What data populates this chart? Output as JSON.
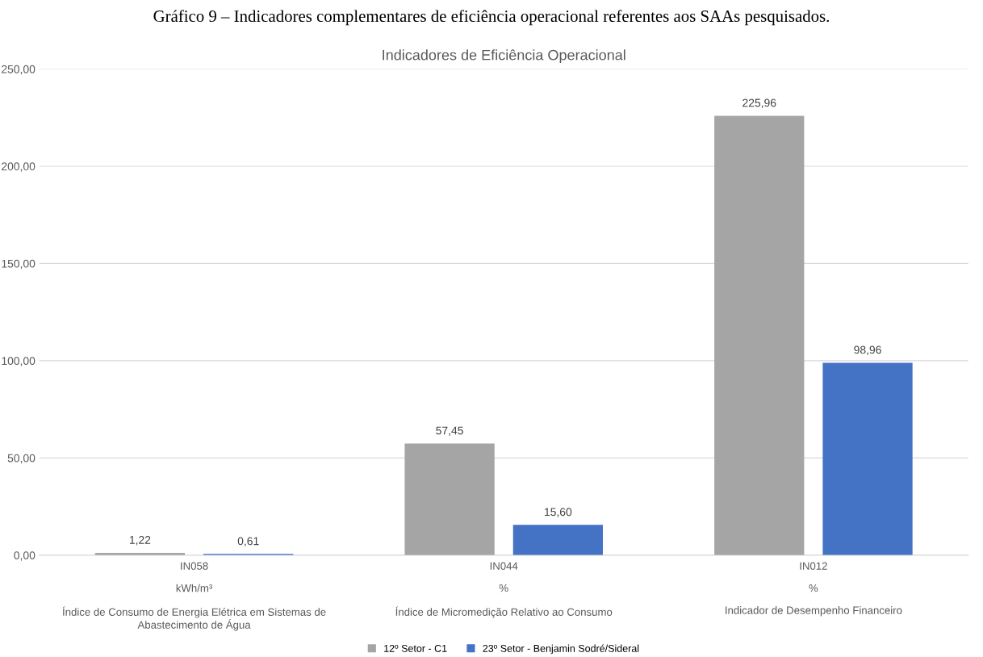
{
  "chart_data": {
    "type": "bar",
    "title": "Indicadores de Eficiência Operacional",
    "annotations": [
      "Gráfico 9 – Indicadores complementares de eficiência operacional referentes aos SAAs pesquisados."
    ],
    "categories": [
      "IN058\n\nkWh/m³\n\nÍndice de Consumo de Energia Elétrica em Sistemas de\nAbastecimento de Água",
      "IN044\n\n%\n\nÍndice de Micromedição Relativo ao Consumo",
      "IN012\n\n%\n\nIndicador de Desempenho Financeiro"
    ],
    "series": [
      {
        "name": "12º Setor - C1",
        "color": "#a5a5a5",
        "values": [
          1.22,
          57.45,
          225.96
        ],
        "value_labels": [
          "1,22",
          "57,45",
          "225,96"
        ]
      },
      {
        "name": "23º Setor - Benjamin Sodré/Sideral",
        "color": "#4472c4",
        "values": [
          0.61,
          15.6,
          98.96
        ],
        "value_labels": [
          "0,61",
          "15,60",
          "98,96"
        ]
      }
    ],
    "ylim": [
      0,
      250
    ],
    "yticks": [
      {
        "value": 0,
        "label": "0,00"
      },
      {
        "value": 50,
        "label": "50,00"
      },
      {
        "value": 100,
        "label": "100,00"
      },
      {
        "value": 150,
        "label": "150,00"
      },
      {
        "value": 200,
        "label": "200,00"
      },
      {
        "value": 250,
        "label": "250,00"
      }
    ],
    "grid": "y",
    "legend": "bottom"
  }
}
